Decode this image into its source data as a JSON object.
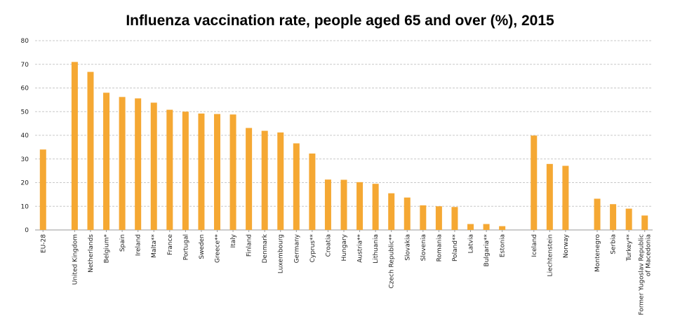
{
  "chart_data": {
    "type": "bar",
    "title": "Influenza vaccination rate, people aged 65 and over (%), 2015",
    "xlabel": "",
    "ylabel": "",
    "ylim": [
      0,
      80
    ],
    "yticks": [
      0,
      10,
      20,
      30,
      40,
      50,
      60,
      70,
      80
    ],
    "grid": "horizontal-dashed",
    "bar_color": "#F5A833",
    "categories": [
      "EU-28",
      "",
      "United Kingdom",
      "Netherlands",
      "Belgium*",
      "Spain",
      "Ireland",
      "Malta**",
      "France",
      "Portugal",
      "Sweden",
      "Greece**",
      "Italy",
      "Finland",
      "Denmark",
      "Luxembourg",
      "Germany",
      "Cyprus**",
      "Croatia",
      "Hungary",
      "Austria**",
      "Lithuania",
      "Czech Republic**",
      "Slovakia",
      "Slovenia",
      "Romania",
      "Poland**",
      "Latvia",
      "Bulgaria**",
      "Estonia",
      "",
      "Iceland",
      "Liechtenstein",
      "Norway",
      "",
      "Montenegro",
      "Serbia",
      "Turkey**",
      "Former Yugoslav Republic of Macedonia"
    ],
    "values": [
      34,
      null,
      71,
      66.8,
      58,
      56.2,
      55.6,
      53.8,
      50.8,
      50,
      49.2,
      49,
      48.8,
      43.1,
      41.9,
      41.2,
      36.6,
      32.3,
      21.3,
      21.2,
      20.2,
      19.5,
      15.5,
      13.7,
      10.4,
      10.0,
      9.7,
      2.5,
      2.5,
      1.6,
      null,
      39.9,
      27.9,
      27.1,
      null,
      13.2,
      10.9,
      9.0,
      6.1
    ]
  }
}
